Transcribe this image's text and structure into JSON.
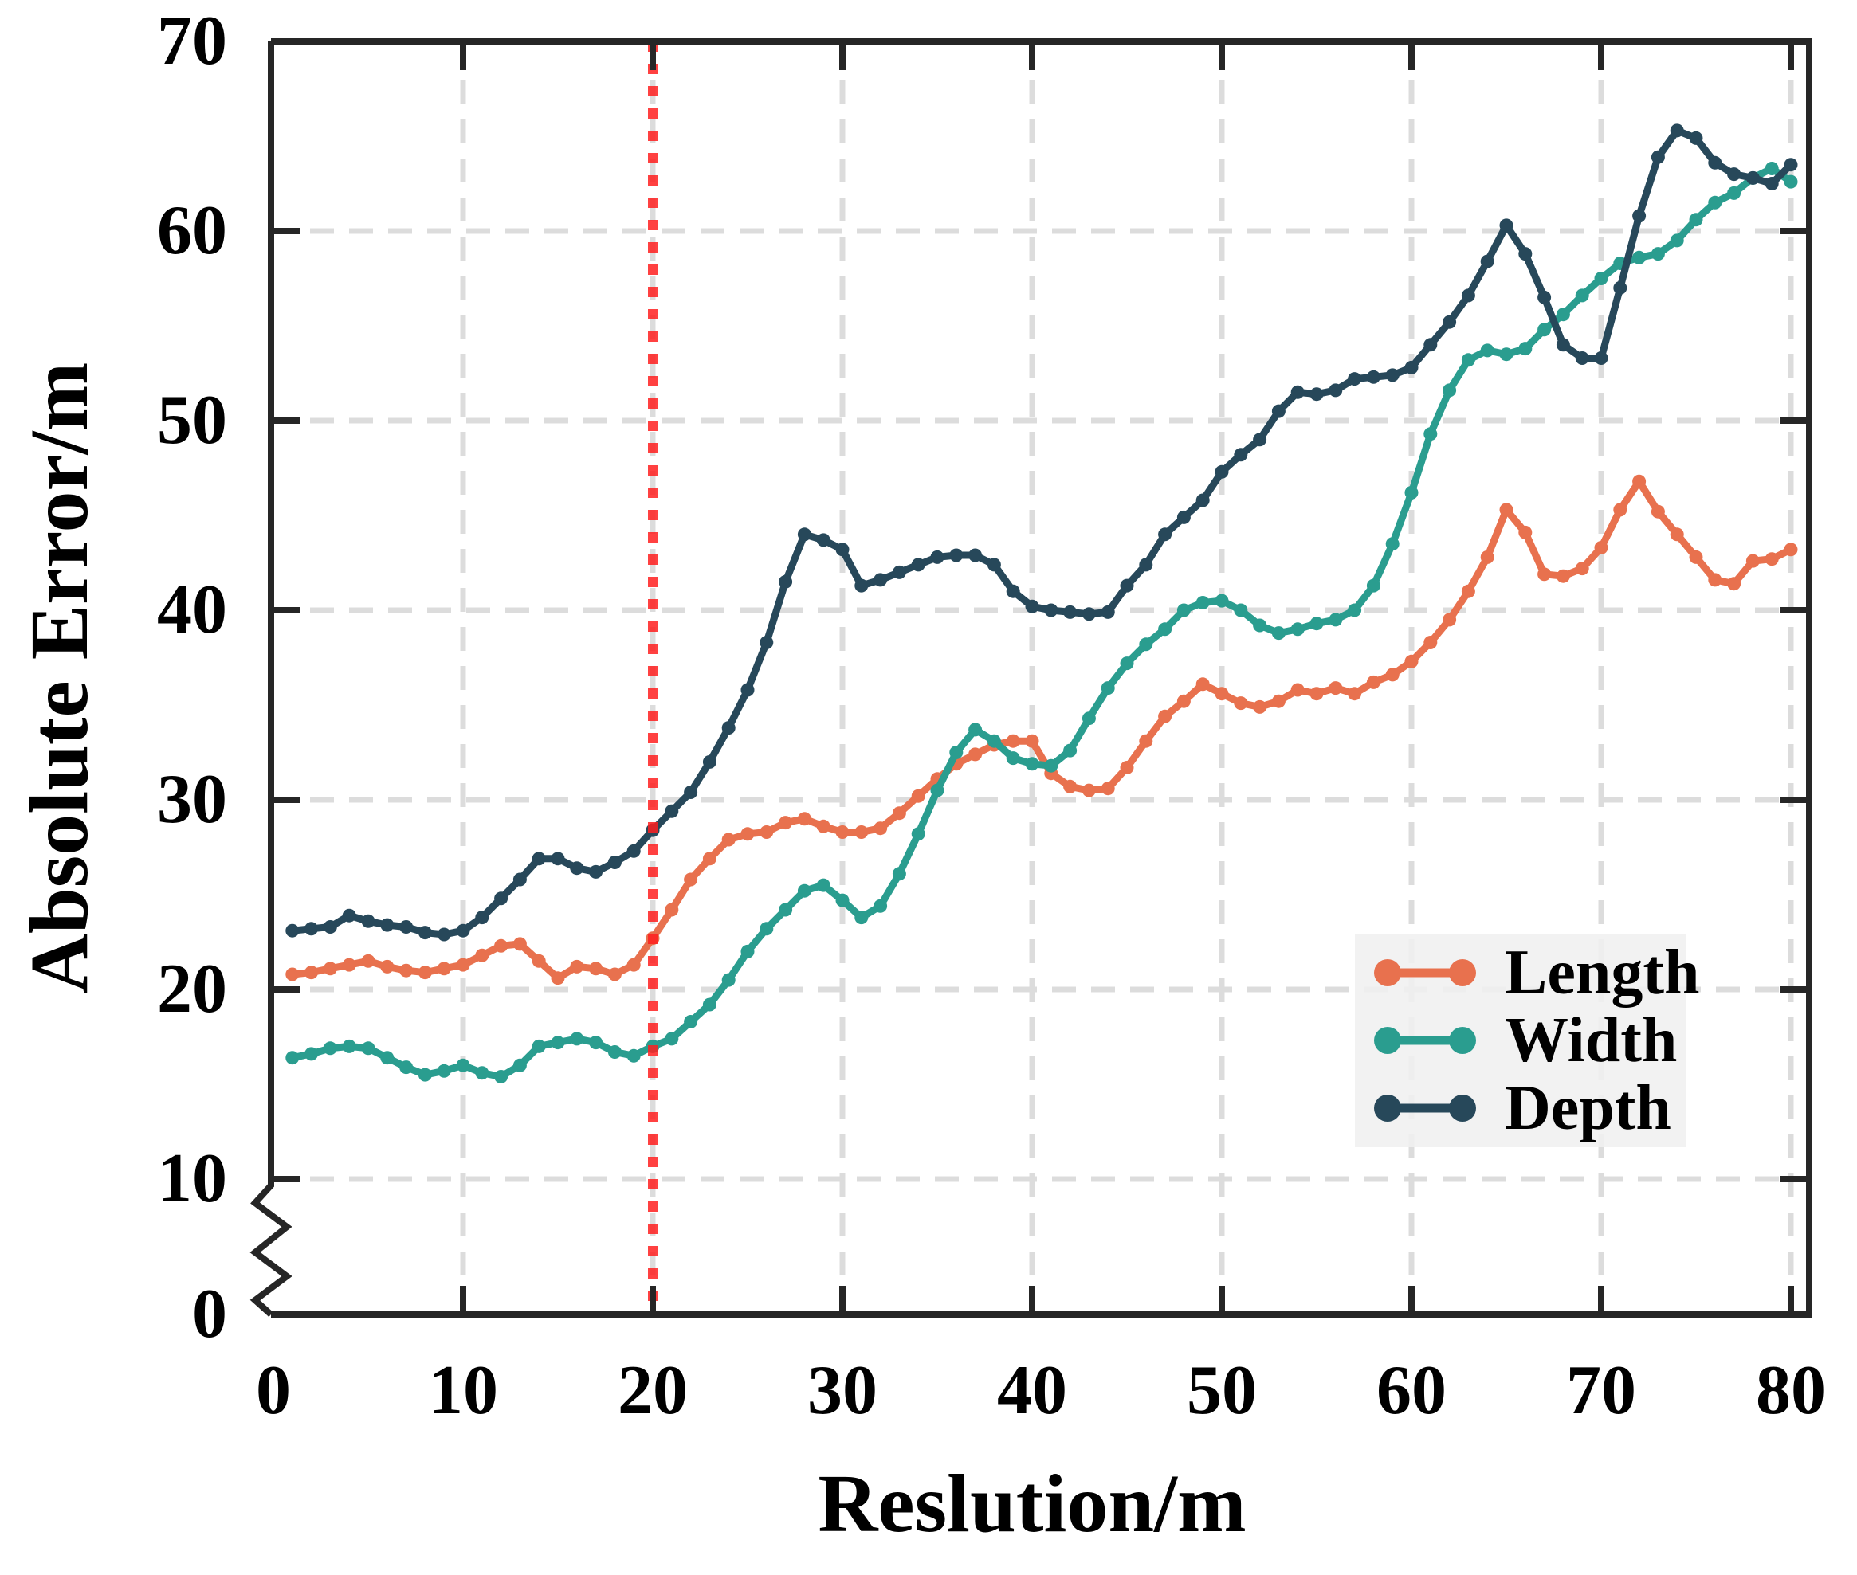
{
  "axes": {
    "x": {
      "label": "Reslution/m",
      "ticks": [
        0,
        10,
        20,
        30,
        40,
        50,
        60,
        70,
        80
      ]
    },
    "y": {
      "label": "Absolute Error/m",
      "ticks": [
        0,
        10,
        20,
        30,
        40,
        50,
        60,
        70
      ],
      "broken_axis": true,
      "break_between": [
        0,
        10
      ]
    }
  },
  "legend": {
    "items": [
      {
        "label": "Length",
        "color": "#E8714E"
      },
      {
        "label": "Width",
        "color": "#2A9D8F"
      },
      {
        "label": "Depth",
        "color": "#27485A"
      }
    ],
    "position": "lower right"
  },
  "reference_line": {
    "x": 20,
    "color": "#FF2020",
    "style": "dotted"
  },
  "style_colors": {
    "spine": "#262626",
    "grid": "#dcdcdc",
    "legend_background": "#f0f0f0",
    "reference": "#FF2020"
  },
  "chart_data": {
    "type": "line",
    "title": "",
    "xlabel": "Reslution/m",
    "ylabel": "Absolute Error/m",
    "xlim": [
      0,
      81
    ],
    "ylim": [
      0,
      70
    ],
    "grid": "dashed",
    "legend_position": "lower right",
    "x_start": 1,
    "x_step": 1,
    "x_end": 80,
    "series": [
      {
        "name": "Length",
        "color": "#E8714E",
        "values": [
          20.8,
          20.9,
          21.1,
          21.3,
          21.5,
          21.2,
          21.0,
          20.9,
          21.1,
          21.3,
          21.8,
          22.3,
          22.4,
          21.5,
          20.6,
          21.2,
          21.1,
          20.8,
          21.3,
          22.7,
          24.2,
          25.8,
          26.9,
          27.9,
          28.2,
          28.3,
          28.8,
          29.0,
          28.6,
          28.3,
          28.3,
          28.5,
          29.3,
          30.2,
          31.1,
          31.9,
          32.4,
          32.9,
          33.1,
          33.1,
          31.4,
          30.7,
          30.5,
          30.6,
          31.7,
          33.1,
          34.4,
          35.2,
          36.1,
          35.6,
          35.1,
          34.9,
          35.2,
          35.8,
          35.6,
          35.9,
          35.6,
          36.2,
          36.6,
          37.3,
          38.3,
          39.5,
          41.0,
          42.8,
          45.3,
          44.1,
          41.9,
          41.8,
          42.2,
          43.3,
          45.3,
          46.8,
          45.2,
          44.0,
          42.8,
          41.6,
          41.4,
          42.6,
          42.7,
          43.2
        ]
      },
      {
        "name": "Width",
        "color": "#2A9D8F",
        "values": [
          16.4,
          16.6,
          16.9,
          17.0,
          16.9,
          16.4,
          15.9,
          15.5,
          15.7,
          16.0,
          15.6,
          15.4,
          16.0,
          17.0,
          17.2,
          17.4,
          17.2,
          16.7,
          16.5,
          17.0,
          17.4,
          18.3,
          19.2,
          20.5,
          22.0,
          23.2,
          24.2,
          25.2,
          25.5,
          24.7,
          23.8,
          24.4,
          26.1,
          28.2,
          30.5,
          32.5,
          33.7,
          33.1,
          32.2,
          31.9,
          31.8,
          32.6,
          34.3,
          35.9,
          37.2,
          38.2,
          39.0,
          40.0,
          40.4,
          40.5,
          40.0,
          39.2,
          38.8,
          39.0,
          39.3,
          39.5,
          40.0,
          41.3,
          43.5,
          46.2,
          49.3,
          51.6,
          53.2,
          53.7,
          53.5,
          53.8,
          54.8,
          55.6,
          56.6,
          57.5,
          58.3,
          58.6,
          58.8,
          59.5,
          60.6,
          61.5,
          62.0,
          62.8,
          63.3,
          62.6
        ]
      },
      {
        "name": "Depth",
        "color": "#27485A",
        "values": [
          23.1,
          23.2,
          23.3,
          23.9,
          23.6,
          23.4,
          23.3,
          23.0,
          22.9,
          23.1,
          23.8,
          24.8,
          25.8,
          26.9,
          26.9,
          26.4,
          26.2,
          26.7,
          27.3,
          28.4,
          29.4,
          30.4,
          32.0,
          33.8,
          35.8,
          38.3,
          41.5,
          44.0,
          43.7,
          43.2,
          41.3,
          41.6,
          42.0,
          42.4,
          42.8,
          42.9,
          42.9,
          42.4,
          41.0,
          40.2,
          40.0,
          39.9,
          39.8,
          39.9,
          41.3,
          42.4,
          44.0,
          44.9,
          45.8,
          47.3,
          48.2,
          49.0,
          50.5,
          51.5,
          51.4,
          51.6,
          52.2,
          52.3,
          52.4,
          52.8,
          54.0,
          55.2,
          56.6,
          58.4,
          60.3,
          58.8,
          56.5,
          54.0,
          53.3,
          53.3,
          57.0,
          60.8,
          63.9,
          65.3,
          64.9,
          63.6,
          63.0,
          62.8,
          62.5,
          63.5
        ]
      }
    ]
  }
}
